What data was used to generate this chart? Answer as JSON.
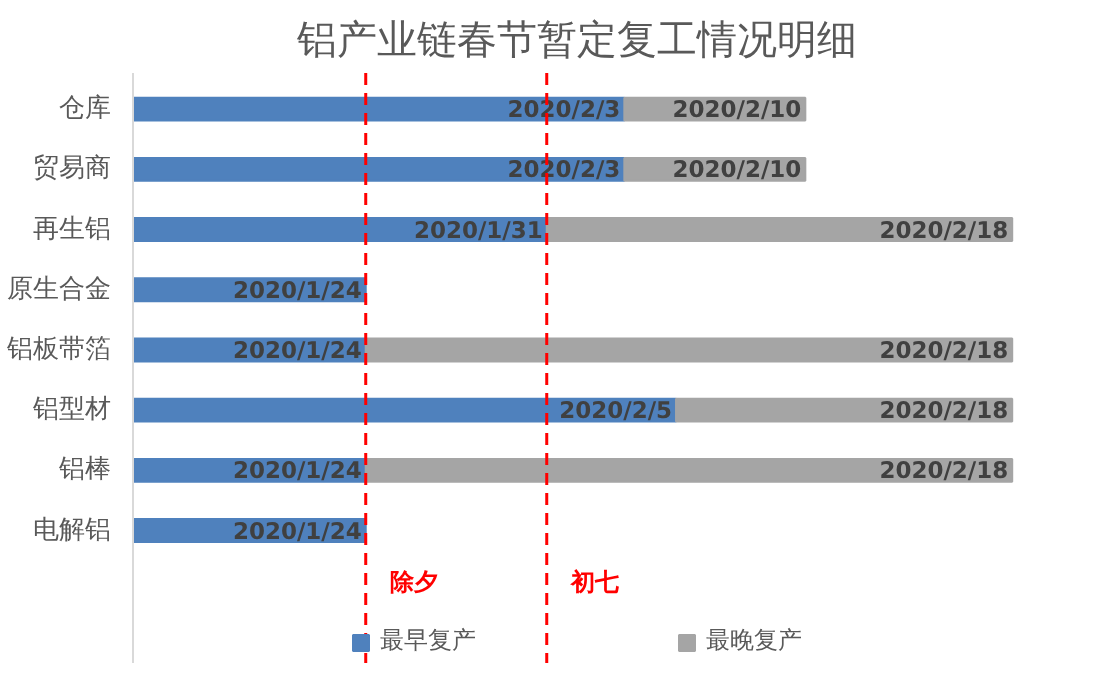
{
  "chart_data": {
    "type": "bar",
    "orientation": "horizontal",
    "stacked": true,
    "title": "铝产业链春节暂定复工情况明细",
    "categories": [
      "仓库",
      "贸易商",
      "再生铝",
      "原生合金",
      "铝板带箔",
      "铝型材",
      "铝棒",
      "电解铝"
    ],
    "tick_labels": "y",
    "grid": false,
    "legend": "bottom",
    "series": [
      {
        "name": "最早复产",
        "color": "#4f81bd",
        "values": [
          19,
          19,
          16,
          9,
          9,
          21,
          9,
          9
        ],
        "value_labels": [
          "2020/2/3",
          "2020/2/3",
          "2020/1/31",
          "2020/1/24",
          "2020/1/24",
          "2020/2/5",
          "2020/1/24",
          "2020/1/24"
        ]
      },
      {
        "name": "最晚复产",
        "color": "#a5a5a5",
        "values": [
          7,
          7,
          18,
          null,
          25,
          13,
          25,
          null
        ],
        "value_labels": [
          "2020/2/10",
          "2020/2/10",
          "2020/2/18",
          null,
          "2020/2/18",
          "2020/2/18",
          "2020/2/18",
          null
        ]
      }
    ],
    "ref_lines": [
      {
        "axis": "x",
        "value": 9,
        "label": "除夕",
        "color": "#ff0000",
        "line_style": "dashed"
      },
      {
        "axis": "x",
        "value": 16,
        "label": "初七",
        "color": "#ff0000",
        "line_style": "dashed"
      }
    ]
  }
}
